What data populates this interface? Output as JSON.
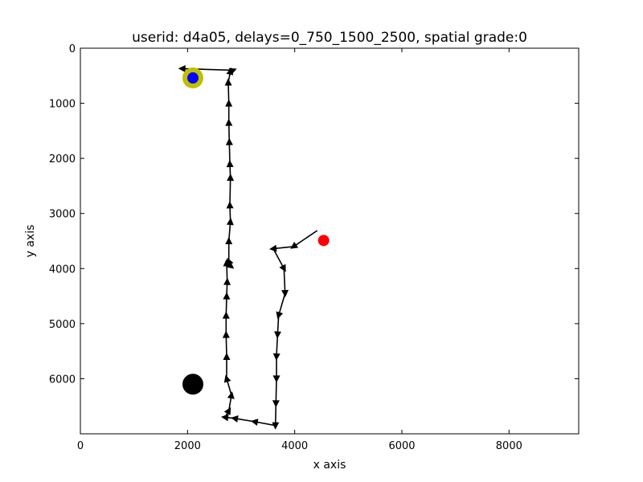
{
  "chart_data": {
    "type": "scatter",
    "title": "userid: d4a05, delays=0_750_1500_2500, spatial grade:0",
    "xlabel": "x axis",
    "ylabel": "y axis",
    "xlim": [
      0,
      9300
    ],
    "ylim": [
      0,
      7000
    ],
    "y_inverted": true,
    "grid": false,
    "xticks": [
      0,
      2000,
      4000,
      6000,
      8000
    ],
    "yticks": [
      0,
      1000,
      2000,
      3000,
      4000,
      5000,
      6000
    ],
    "trajectory": {
      "color": "#000000",
      "points": [
        [
          4420,
          3310
        ],
        [
          3980,
          3600
        ],
        [
          3600,
          3640
        ],
        [
          3800,
          4000
        ],
        [
          3820,
          4450
        ],
        [
          3700,
          4850
        ],
        [
          3680,
          5200
        ],
        [
          3660,
          5600
        ],
        [
          3660,
          6000
        ],
        [
          3650,
          6450
        ],
        [
          3640,
          6850
        ],
        [
          3250,
          6780
        ],
        [
          2880,
          6720
        ],
        [
          2700,
          6700
        ],
        [
          2770,
          6580
        ],
        [
          2820,
          6300
        ],
        [
          2730,
          6000
        ],
        [
          2730,
          5600
        ],
        [
          2720,
          5200
        ],
        [
          2720,
          4850
        ],
        [
          2730,
          4500
        ],
        [
          2740,
          4240
        ],
        [
          2730,
          3900
        ],
        [
          2810,
          3960
        ],
        [
          2770,
          3870
        ],
        [
          2770,
          3500
        ],
        [
          2800,
          3150
        ],
        [
          2790,
          2850
        ],
        [
          2800,
          2350
        ],
        [
          2790,
          2100
        ],
        [
          2780,
          1700
        ],
        [
          2770,
          1350
        ],
        [
          2770,
          1000
        ],
        [
          2760,
          620
        ],
        [
          2800,
          420
        ],
        [
          2850,
          400
        ],
        [
          1900,
          370
        ]
      ]
    },
    "markers": [
      {
        "name": "target",
        "x": 2100,
        "y": 540,
        "color": "#bfbf00",
        "size": "large"
      },
      {
        "name": "target-center",
        "x": 2100,
        "y": 540,
        "color": "#0000ff",
        "size": "small"
      },
      {
        "name": "start",
        "x": 4540,
        "y": 3490,
        "color": "#ff0000",
        "size": "small"
      },
      {
        "name": "origin",
        "x": 2100,
        "y": 6100,
        "color": "#000000",
        "size": "large"
      }
    ]
  }
}
